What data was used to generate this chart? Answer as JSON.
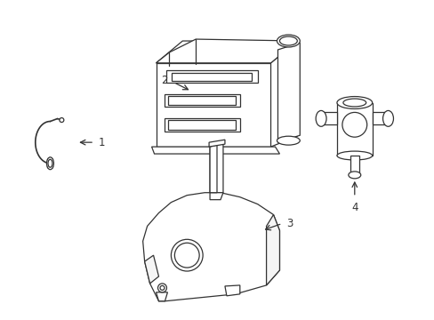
{
  "background_color": "#ffffff",
  "line_color": "#333333",
  "line_width": 0.9,
  "label_fontsize": 8.5,
  "figsize": [
    4.89,
    3.6
  ],
  "dpi": 100
}
